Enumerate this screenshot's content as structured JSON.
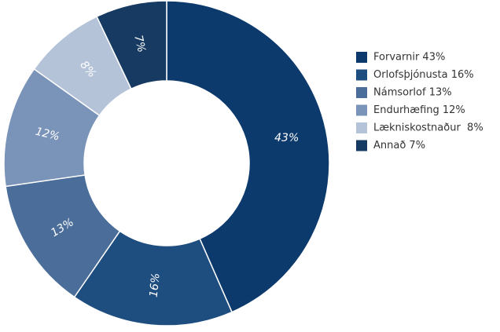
{
  "chart_data": {
    "type": "donut",
    "categories": [
      "Forvarnir 43%",
      "Orlofsþjónusta 16%",
      "Námsorlof 13%",
      "Endurhæfing 12%",
      "Lækniskostnaður  8%",
      "Annað 7%"
    ],
    "values": [
      43,
      16,
      13,
      12,
      8,
      7
    ],
    "value_labels": [
      "43%",
      "16%",
      "13%",
      "12%",
      "8%",
      "7%"
    ],
    "colors": [
      "#0d3a6c",
      "#1e4d80",
      "#4a6d9a",
      "#7a93b8",
      "#b5c3d9",
      "#163a62"
    ],
    "legend": "right"
  }
}
